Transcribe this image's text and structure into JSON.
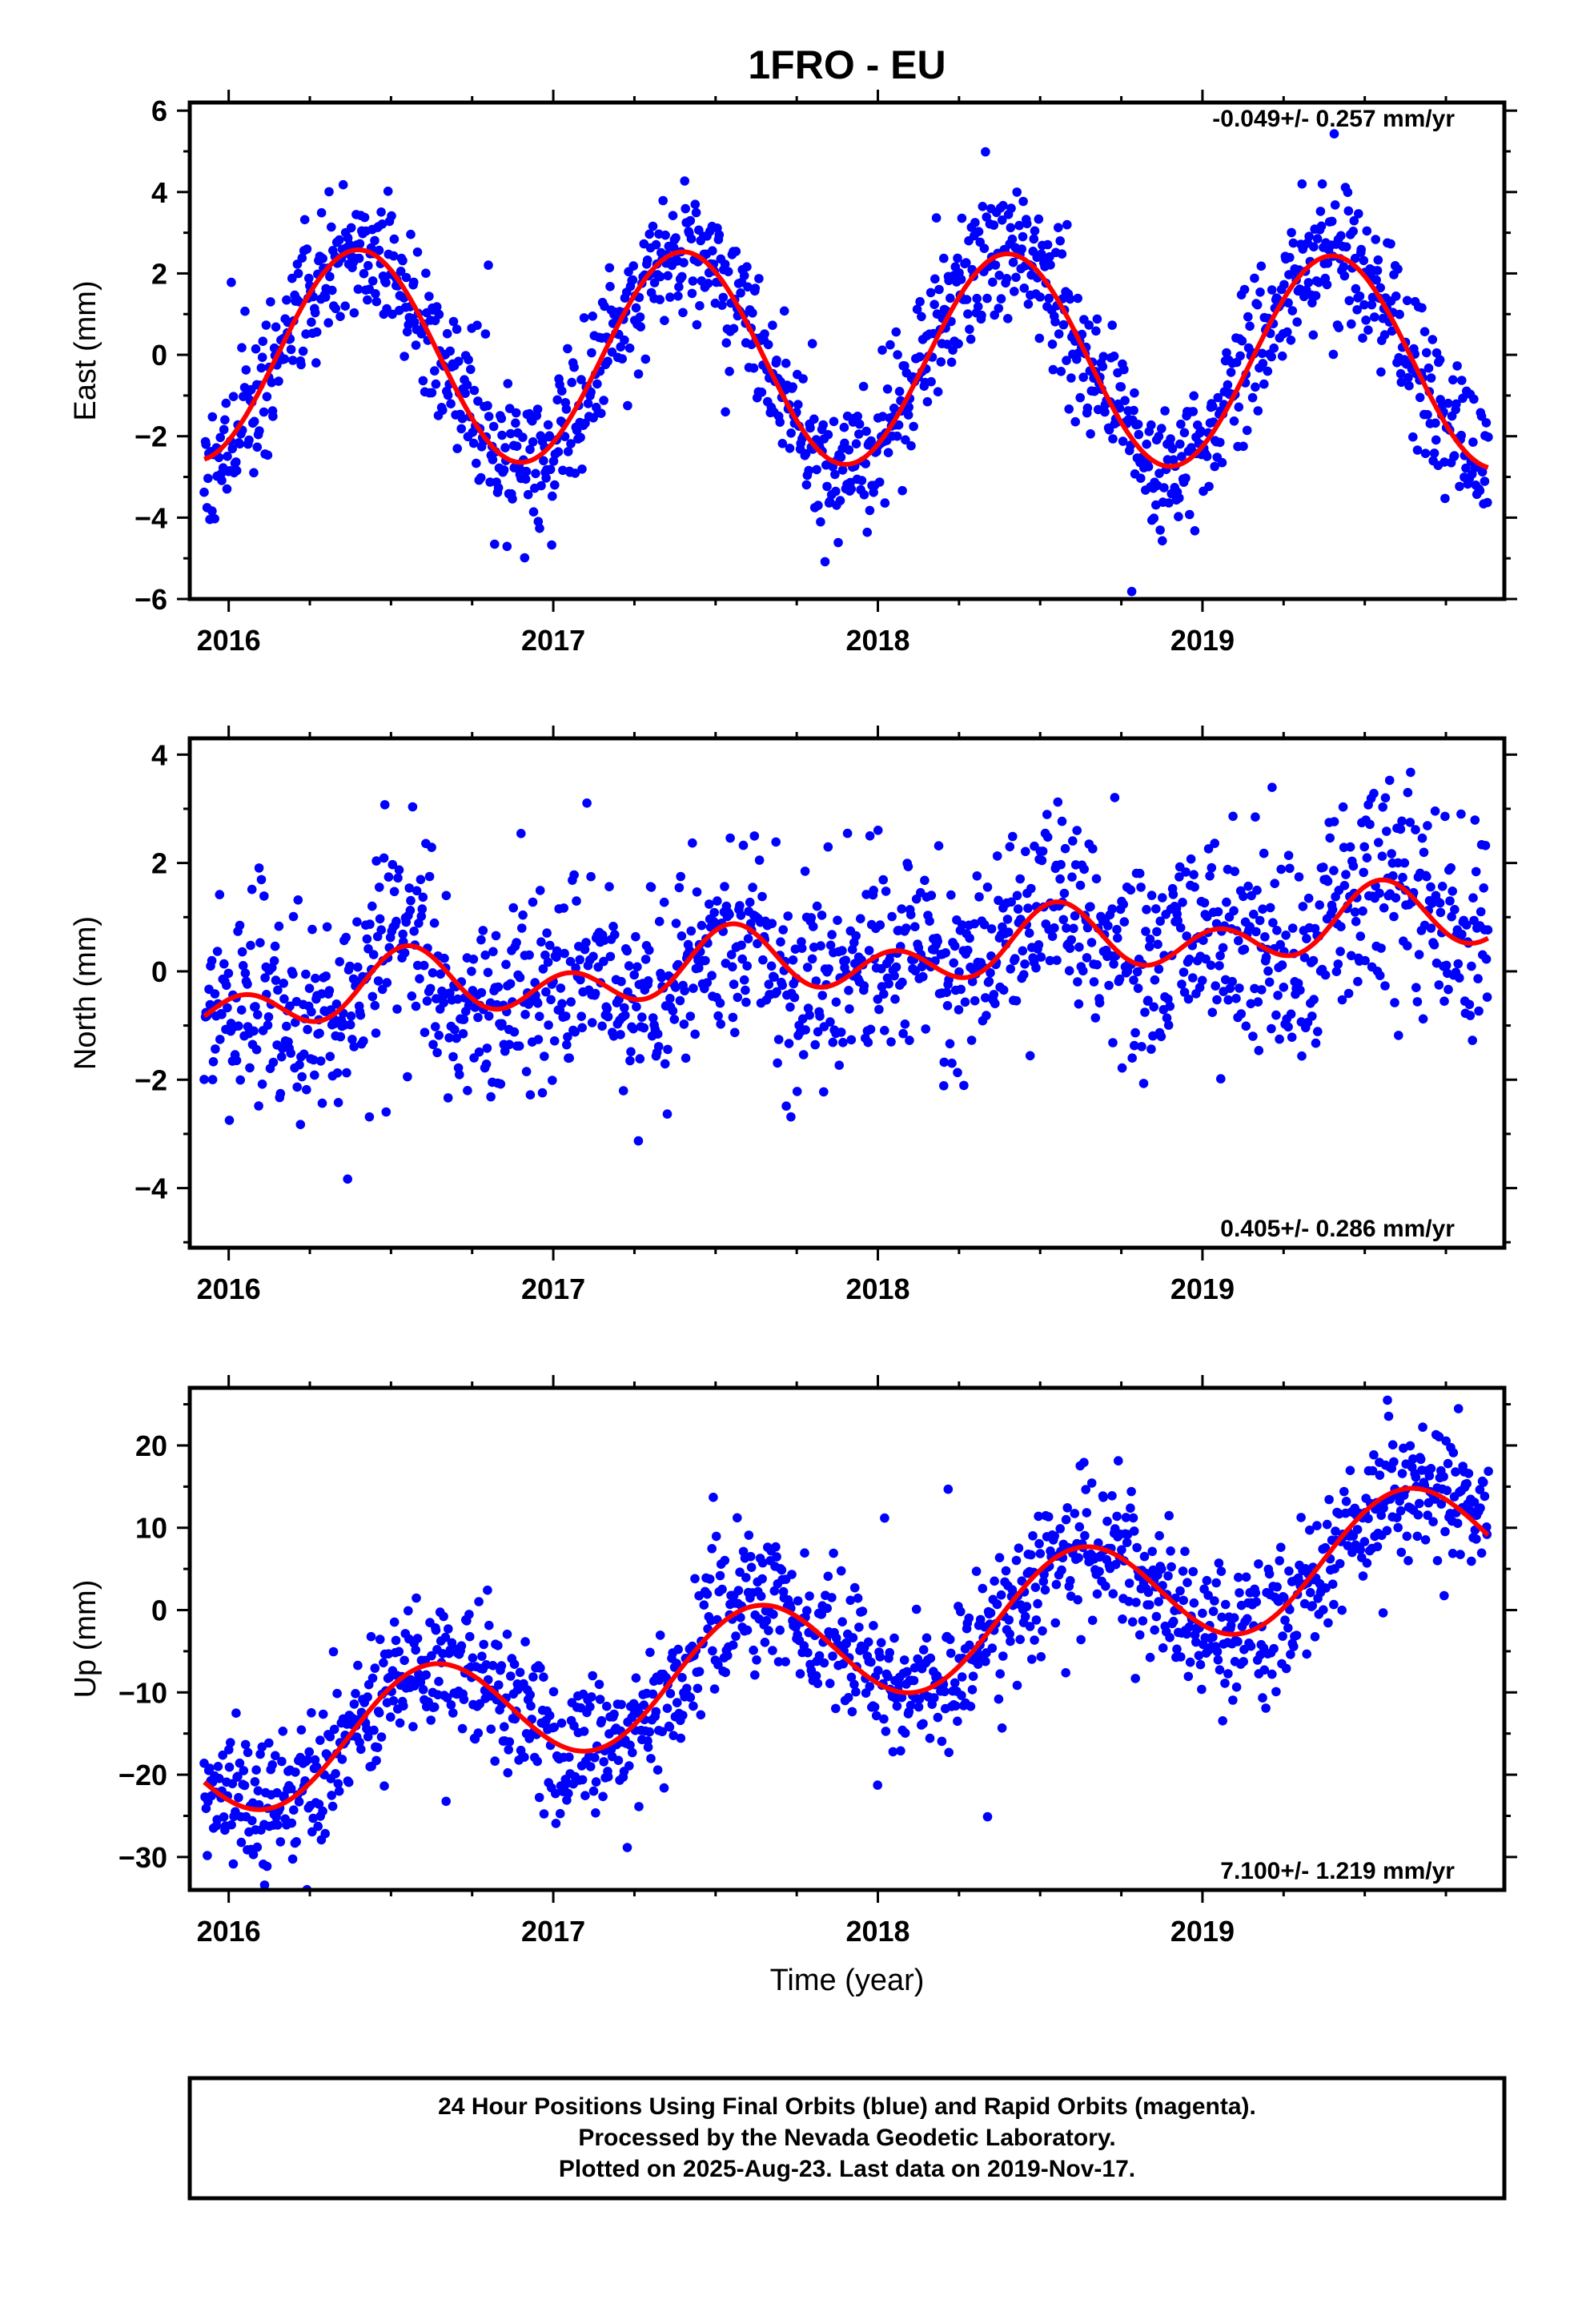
{
  "title": "1FRO - EU",
  "xlabel": "Time (year)",
  "footer": [
    "24 Hour Positions Using Final Orbits (blue) and Rapid Orbits (magenta).",
    "Processed by the Nevada Geodetic Laboratory.",
    "Plotted on 2025-Aug-23. Last data on 2019-Nov-17."
  ],
  "colors": {
    "points": "#0000ff",
    "model": "#ff0000",
    "axes": "#000000"
  },
  "chart_data": [
    {
      "type": "scatter",
      "component": "East",
      "ylabel": "East (mm)",
      "rate_label": "-0.049+/- 0.257 mm/yr",
      "xlim": [
        2015.88,
        2019.93
      ],
      "ylim": [
        -6,
        6.2
      ],
      "xticks": [
        2016,
        2017,
        2018,
        2019
      ],
      "xtick_labels": [
        "2016",
        "2017",
        "2018",
        "2019"
      ],
      "yticks": [
        -6,
        -4,
        -2,
        0,
        2,
        4,
        6
      ],
      "ytick_labels": [
        "−6",
        "−4",
        "−2",
        "0",
        "2",
        "4",
        "6"
      ],
      "model": {
        "offset": 0.0,
        "rate": -0.049,
        "annual_amp": 2.6,
        "annual_peak": 0.4,
        "semi_amp": 0.0,
        "semi_peak": 0.0,
        "steps": []
      },
      "scatter_sd": 0.85,
      "n_points": 1380,
      "seed": 11,
      "series": [
        {
          "name": "Final Orbits",
          "role": "points"
        },
        {
          "name": "Model",
          "role": "line"
        }
      ]
    },
    {
      "type": "scatter",
      "component": "North",
      "ylabel": "North (mm)",
      "rate_label": "0.405+/- 0.286 mm/yr",
      "xlim": [
        2015.88,
        2019.93
      ],
      "ylim": [
        -5.1,
        4.3
      ],
      "xticks": [
        2016,
        2017,
        2018,
        2019
      ],
      "xtick_labels": [
        "2016",
        "2017",
        "2018",
        "2019"
      ],
      "yticks": [
        -4,
        -2,
        0,
        2,
        4
      ],
      "ytick_labels": [
        "−4",
        "−2",
        "0",
        "2",
        "4"
      ],
      "model": {
        "offset": -0.55,
        "rate": 0.405,
        "annual_amp": 0.35,
        "annual_peak": 0.55,
        "semi_amp": 0.45,
        "semi_peak": 0.55,
        "steps": []
      },
      "scatter_sd": 0.9,
      "n_points": 1380,
      "seed": 23,
      "series": [
        {
          "name": "Final Orbits",
          "role": "points"
        },
        {
          "name": "Model",
          "role": "line"
        }
      ]
    },
    {
      "type": "scatter",
      "component": "Up",
      "ylabel": "Up (mm)",
      "rate_label": "7.100+/- 1.219 mm/yr",
      "xlim": [
        2015.88,
        2019.93
      ],
      "ylim": [
        -34,
        27
      ],
      "xticks": [
        2016,
        2017,
        2018,
        2019
      ],
      "xtick_labels": [
        "2016",
        "2017",
        "2018",
        "2019"
      ],
      "yticks": [
        -30,
        -20,
        -10,
        0,
        10,
        20
      ],
      "ytick_labels": [
        "−30",
        "−20",
        "−10",
        "0",
        "10",
        "20"
      ],
      "model": {
        "offset": -18.0,
        "rate": 7.1,
        "annual_amp": 7.0,
        "annual_peak": 0.62,
        "semi_amp": 0.0,
        "semi_peak": 0.0,
        "steps": []
      },
      "scatter_sd": 4.2,
      "n_points": 1380,
      "seed": 37,
      "series": [
        {
          "name": "Final Orbits",
          "role": "points"
        },
        {
          "name": "Model",
          "role": "line"
        }
      ]
    }
  ]
}
